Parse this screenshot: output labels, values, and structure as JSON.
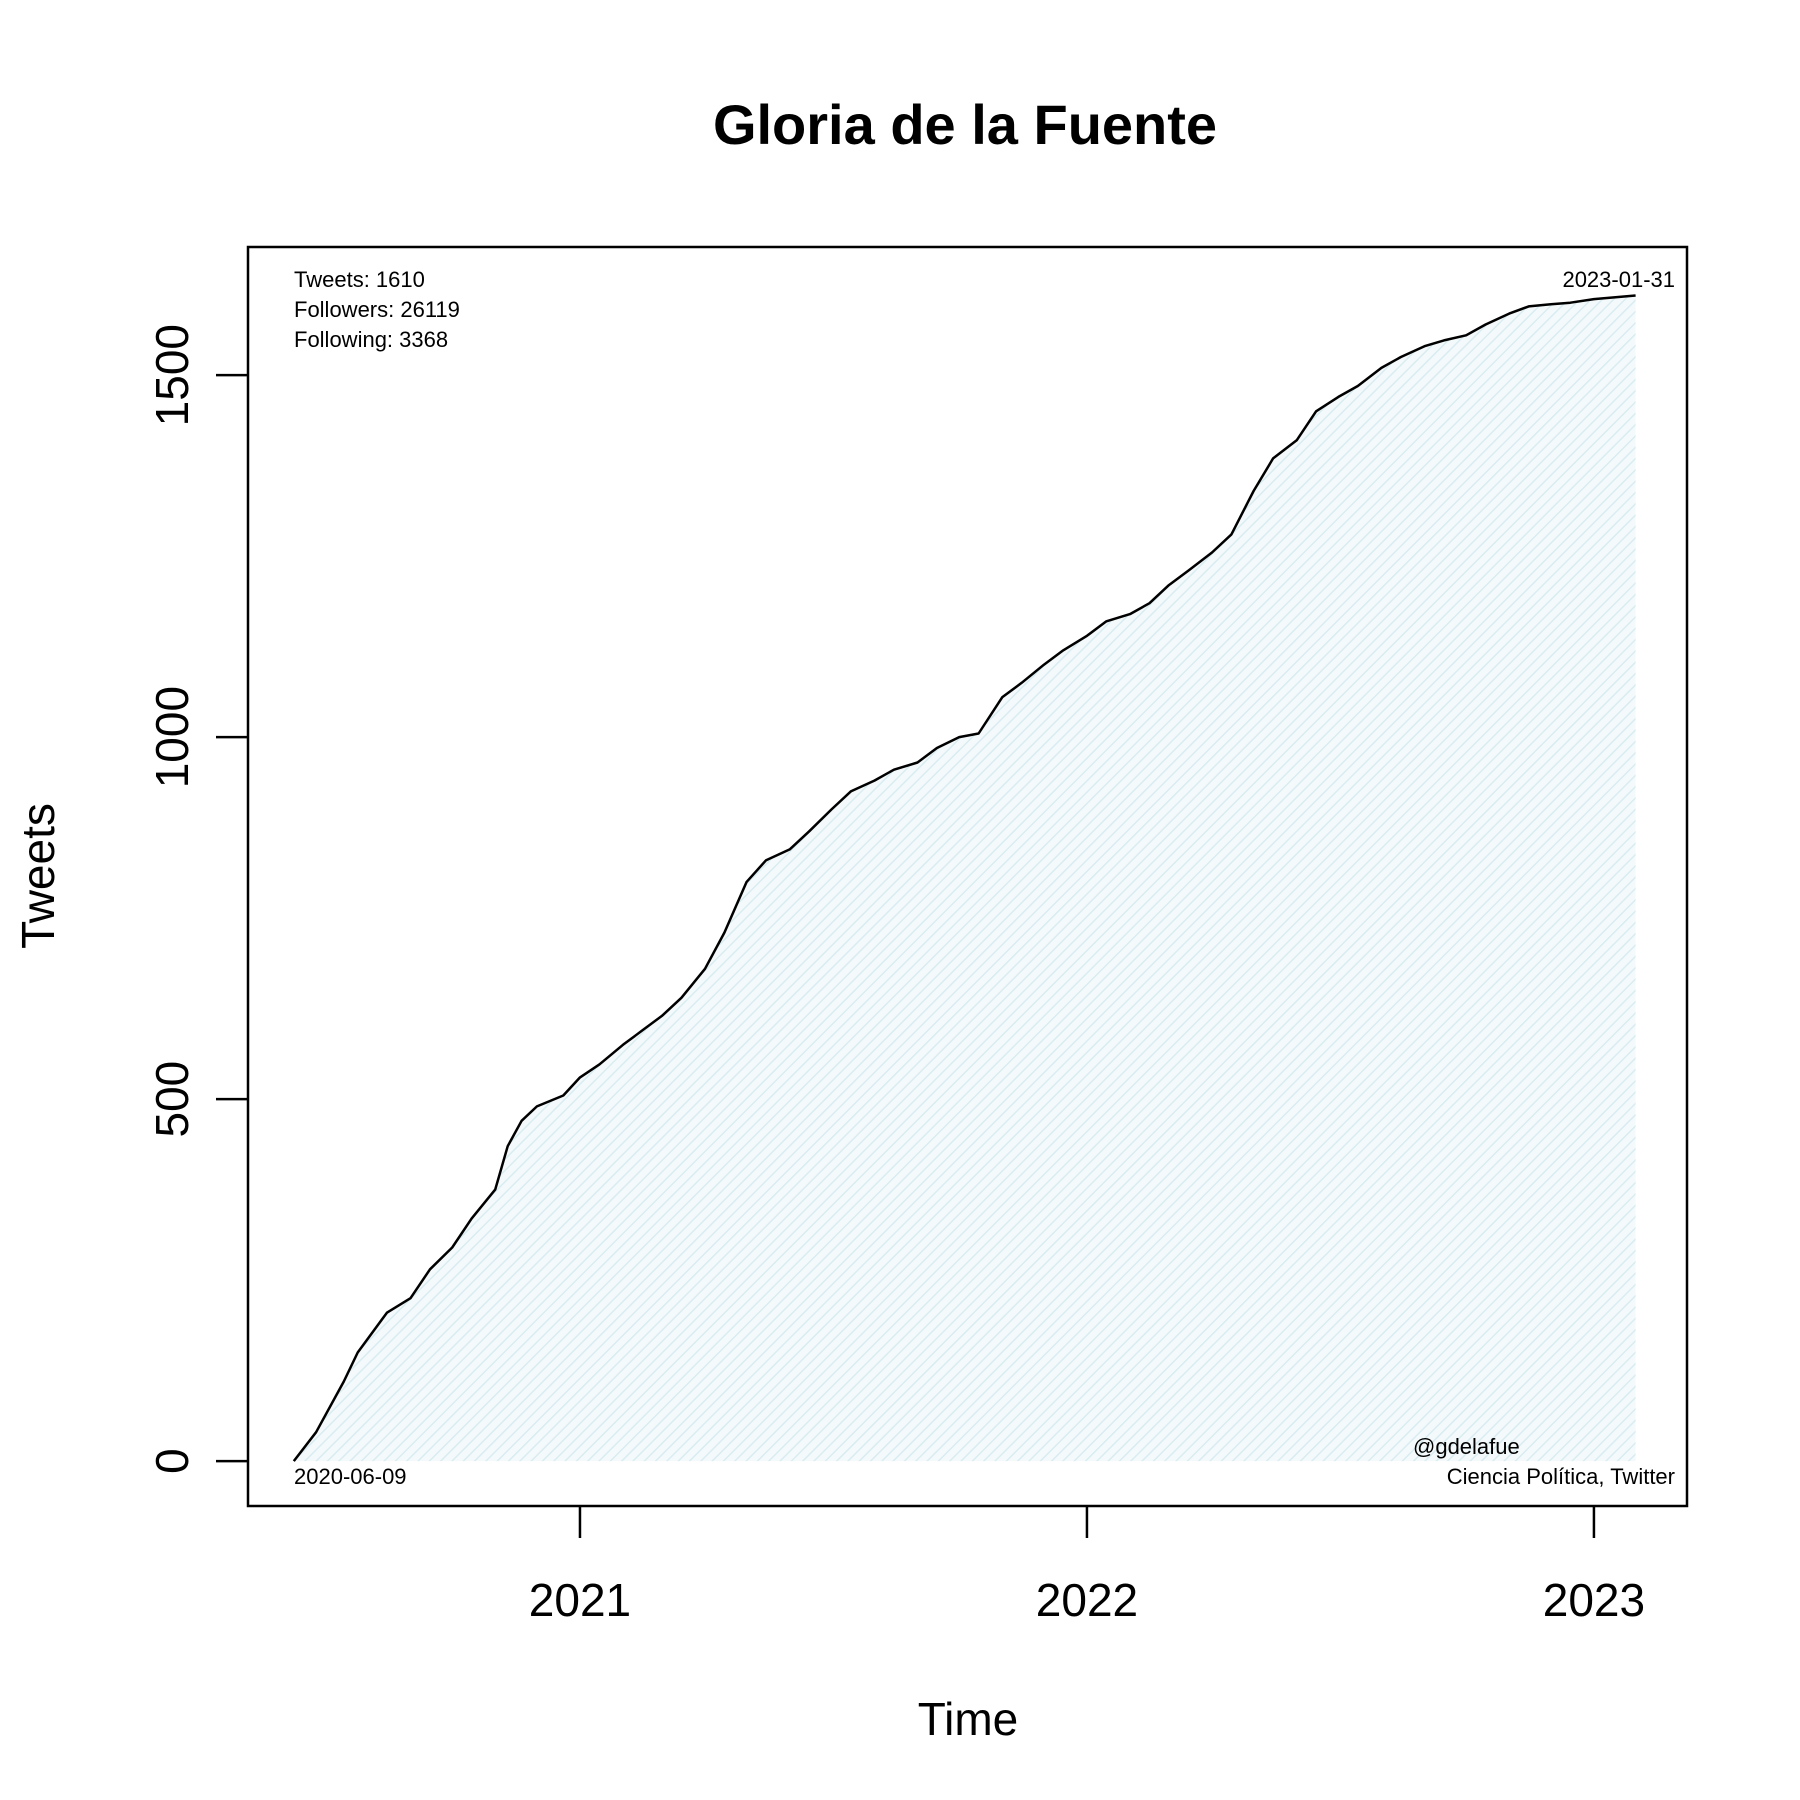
{
  "chart_data": {
    "type": "area",
    "title": "Gloria de la Fuente",
    "xlabel": "Time",
    "ylabel": "Tweets",
    "x_ticks": [
      "2021",
      "2022",
      "2023"
    ],
    "y_ticks": [
      "0",
      "500",
      "1000",
      "1500"
    ],
    "ylim": [
      -62,
      1677
    ],
    "xlim": [
      "2020-05-07",
      "2023-03-09"
    ],
    "grid": false,
    "fill_color": "#e6f3f6",
    "line_color": "#000000",
    "stats": {
      "tweets": "Tweets: 1610",
      "followers": "Followers: 26119",
      "following": "Following: 3368"
    },
    "start_date": "2020-06-09",
    "end_date": "2023-01-31",
    "handle": "@gdelafue",
    "description": "Ciencia Política, Twitter",
    "series": [
      {
        "x": [
          "2020-06-09",
          "2020-06-25",
          "2020-07-15",
          "2020-07-25",
          "2020-08-15",
          "2020-09-01",
          "2020-09-15",
          "2020-10-01",
          "2020-10-15",
          "2020-11-01",
          "2020-11-10",
          "2020-11-20",
          "2020-12-01",
          "2020-12-20",
          "2021-01-01",
          "2021-01-15",
          "2021-02-01",
          "2021-02-15",
          "2021-03-01",
          "2021-03-15",
          "2021-04-01",
          "2021-04-15",
          "2021-05-01",
          "2021-05-15",
          "2021-06-01",
          "2021-06-15",
          "2021-07-01",
          "2021-07-15",
          "2021-08-01",
          "2021-08-15",
          "2021-09-01",
          "2021-09-15",
          "2021-10-01",
          "2021-10-15",
          "2021-11-01",
          "2021-11-15",
          "2021-12-01",
          "2021-12-15",
          "2022-01-01",
          "2022-01-15",
          "2022-02-01",
          "2022-02-15",
          "2022-03-01",
          "2022-03-15",
          "2022-04-01",
          "2022-04-15",
          "2022-05-01",
          "2022-05-15",
          "2022-06-01",
          "2022-06-15",
          "2022-07-01",
          "2022-07-15",
          "2022-08-01",
          "2022-08-15",
          "2022-09-01",
          "2022-09-15",
          "2022-10-01",
          "2022-10-15",
          "2022-11-01",
          "2022-11-15",
          "2022-12-01",
          "2022-12-15",
          "2023-01-01",
          "2023-01-31"
        ],
        "y": [
          0,
          40,
          110,
          150,
          205,
          225,
          265,
          295,
          335,
          375,
          435,
          470,
          490,
          505,
          530,
          548,
          575,
          595,
          615,
          640,
          680,
          730,
          800,
          830,
          845,
          870,
          900,
          925,
          940,
          955,
          965,
          985,
          1000,
          1005,
          1055,
          1075,
          1100,
          1120,
          1140,
          1160,
          1170,
          1185,
          1210,
          1230,
          1255,
          1280,
          1340,
          1385,
          1410,
          1450,
          1470,
          1485,
          1510,
          1525,
          1540,
          1548,
          1555,
          1570,
          1585,
          1595,
          1598,
          1600,
          1605,
          1610
        ]
      }
    ]
  }
}
